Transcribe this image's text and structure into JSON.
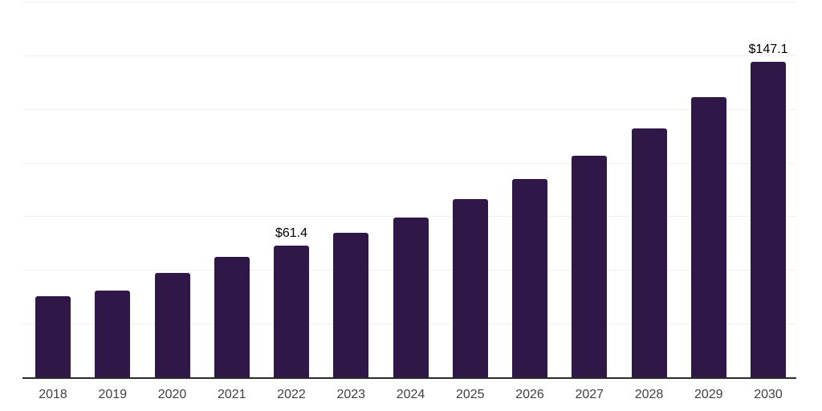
{
  "page": {
    "background": "#ffffff"
  },
  "chart_data": {
    "type": "bar",
    "title": "",
    "xlabel": "",
    "ylabel": "",
    "categories": [
      "2018",
      "2019",
      "2020",
      "2021",
      "2022",
      "2023",
      "2024",
      "2025",
      "2026",
      "2027",
      "2028",
      "2029",
      "2030"
    ],
    "values": [
      37.9,
      40.7,
      48.7,
      56.2,
      61.4,
      67.5,
      74.7,
      83.2,
      92.4,
      103.3,
      116.1,
      130.8,
      147.1
    ],
    "data_labels": {
      "2022": "$61.4",
      "2030": "$147.1"
    },
    "ylim": [
      0,
      175
    ],
    "gridline_step": 25,
    "grid": "horizontal",
    "legend": "none",
    "y_axis_tick_labels_visible": false,
    "colors": {
      "bar": "#2f1747",
      "axis_line": "#2b2b2b",
      "gridline": "#f1f1f4",
      "tick_label": "#404040",
      "data_label": "#000000",
      "background": "#ffffff"
    }
  }
}
